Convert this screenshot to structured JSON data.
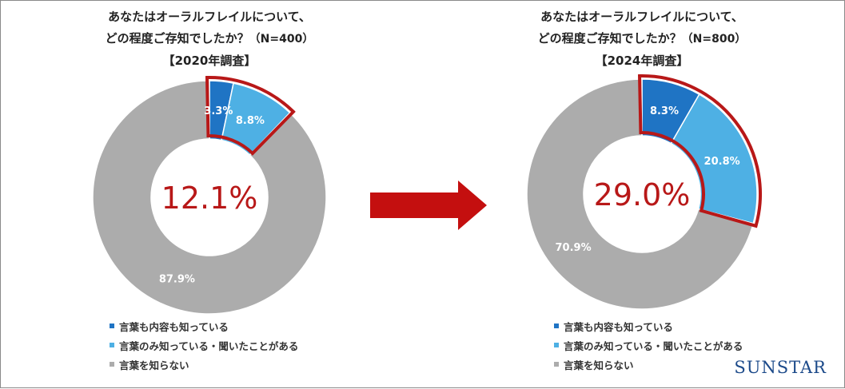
{
  "chart_data": [
    {
      "type": "pie",
      "title_line1": "あなたはオーラルフレイルについて、",
      "title_line2": "どの程度ご存知でしたか？",
      "sample": "（N=400）",
      "survey": "【2020年調査】",
      "center_label": "12.1%",
      "categories": [
        "言葉も内容も知っている",
        "言葉のみ知っている・聞いたことがある",
        "言葉を知らない"
      ],
      "values": [
        3.3,
        8.8,
        87.9
      ],
      "value_labels": [
        "3.3%",
        "8.8%",
        "87.9%"
      ],
      "highlighted": [
        0,
        1
      ],
      "legend_position": "bottom-left"
    },
    {
      "type": "pie",
      "title_line1": "あなたはオーラルフレイルについて、",
      "title_line2": "どの程度ご存知でしたか？",
      "sample": "（N=800）",
      "survey": "【2024年調査】",
      "center_label": "29.0%",
      "categories": [
        "言葉も内容も知っている",
        "言葉のみ知っている・聞いたことがある",
        "言葉を知らない"
      ],
      "values": [
        8.3,
        20.8,
        70.9
      ],
      "value_labels": [
        "8.3%",
        "20.8%",
        "70.9%"
      ],
      "highlighted": [
        0,
        1
      ],
      "legend_position": "bottom-left"
    }
  ],
  "colors": {
    "know_both": "#1f74c4",
    "heard_only": "#4eb0e4",
    "not_know": "#acacac",
    "highlight": "#b81818",
    "arrow": "#c40f0f",
    "brand": "#1c4a8a"
  },
  "brand": "SUNSTAR"
}
